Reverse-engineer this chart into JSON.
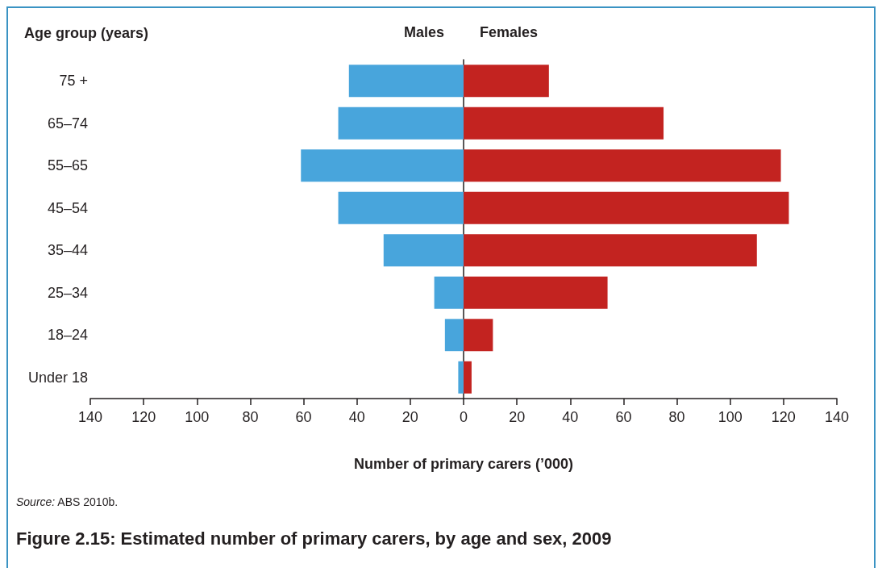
{
  "chart_data": {
    "type": "bar",
    "orientation": "horizontal",
    "stacked": true,
    "title": "Figure 2.15: Estimated number of primary carers, by age and sex, 2009",
    "xlabel": "Number of primary carers (’000)",
    "ylabel": "Age group (years)",
    "annotations": [
      "Source: ABS 2010b."
    ],
    "categories": [
      "75 +",
      "65–74",
      "55–65",
      "45–54",
      "35–44",
      "25–34",
      "18–24",
      "Under 18"
    ],
    "series": [
      {
        "name": "Males",
        "color": "#48a5dc",
        "values": [
          -43,
          -47,
          -61,
          -47,
          -30,
          -11,
          -7,
          -2
        ]
      },
      {
        "name": "Females",
        "color": "#c32320",
        "values": [
          32,
          75,
          119,
          122,
          110,
          54,
          11,
          3
        ]
      }
    ],
    "xlim": [
      -140,
      140
    ],
    "xticks": [
      {
        "value": -140,
        "label": "140"
      },
      {
        "value": -120,
        "label": "120"
      },
      {
        "value": -100,
        "label": "100"
      },
      {
        "value": -80,
        "label": "80"
      },
      {
        "value": -60,
        "label": "60"
      },
      {
        "value": -40,
        "label": "40"
      },
      {
        "value": -20,
        "label": "20"
      },
      0,
      20,
      40,
      60,
      80,
      100,
      120,
      140
    ]
  }
}
